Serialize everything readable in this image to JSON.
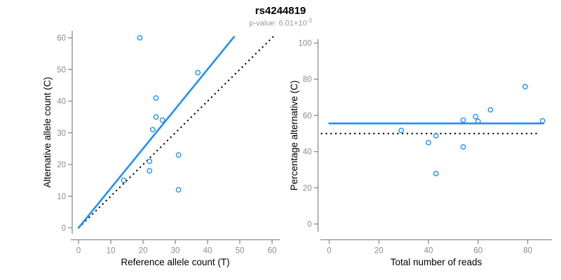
{
  "header": {
    "title": "rs4244819",
    "subtitle_prefix": "p-value: 6.01×10",
    "subtitle_exponent": "-3"
  },
  "colors": {
    "accent_blue": "#1E90FF",
    "axis_gray": "#8a8a8a",
    "tick_label_gray": "#8c8c8c",
    "axis_title_black": "#000000",
    "reference_line_black": "#000000",
    "subtitle_gray": "#9a9a9a"
  },
  "chart_data": [
    {
      "type": "scatter",
      "xlabel": "Reference allele count (T)",
      "ylabel": "Alternative allele count (C)",
      "xlim": [
        0,
        60
      ],
      "ylim": [
        0,
        60
      ],
      "xticks": [
        0,
        10,
        20,
        30,
        40,
        50,
        60
      ],
      "yticks": [
        0,
        10,
        20,
        30,
        40,
        50,
        60
      ],
      "grid": false,
      "legend": "none",
      "points": [
        [
          19,
          60
        ],
        [
          37,
          49
        ],
        [
          24,
          41
        ],
        [
          24,
          35
        ],
        [
          26,
          34
        ],
        [
          23,
          31
        ],
        [
          31,
          23
        ],
        [
          22,
          21
        ],
        [
          22,
          18
        ],
        [
          14,
          15
        ],
        [
          31,
          12
        ]
      ],
      "fit_line": {
        "style": "solid",
        "from": [
          0,
          0
        ],
        "to": [
          48.2,
          60.3
        ]
      },
      "reference_line": {
        "style": "dotted",
        "from": [
          0,
          0
        ],
        "to": [
          60.5,
          60.5
        ]
      }
    },
    {
      "type": "scatter",
      "xlabel": "Total number of reads",
      "ylabel": "Percentage alternative (C)",
      "xlim": [
        0,
        80
      ],
      "ylim": [
        0,
        100
      ],
      "xticks": [
        0,
        20,
        40,
        60,
        80
      ],
      "yticks": [
        0,
        20,
        40,
        60,
        80,
        100
      ],
      "grid": false,
      "legend": "none",
      "points": [
        [
          79,
          75.9
        ],
        [
          86,
          57.0
        ],
        [
          65,
          63.1
        ],
        [
          59,
          59.3
        ],
        [
          60,
          56.7
        ],
        [
          54,
          57.4
        ],
        [
          54,
          42.6
        ],
        [
          43,
          48.8
        ],
        [
          40,
          45.0
        ],
        [
          29,
          51.7
        ],
        [
          43,
          27.9
        ]
      ],
      "fit_line": {
        "style": "solid",
        "from": [
          0,
          55.6
        ],
        "to": [
          86.3,
          55.6
        ]
      },
      "reference_line": {
        "style": "dotted",
        "from": [
          -3.4,
          50
        ],
        "to": [
          84.5,
          50
        ]
      }
    }
  ]
}
